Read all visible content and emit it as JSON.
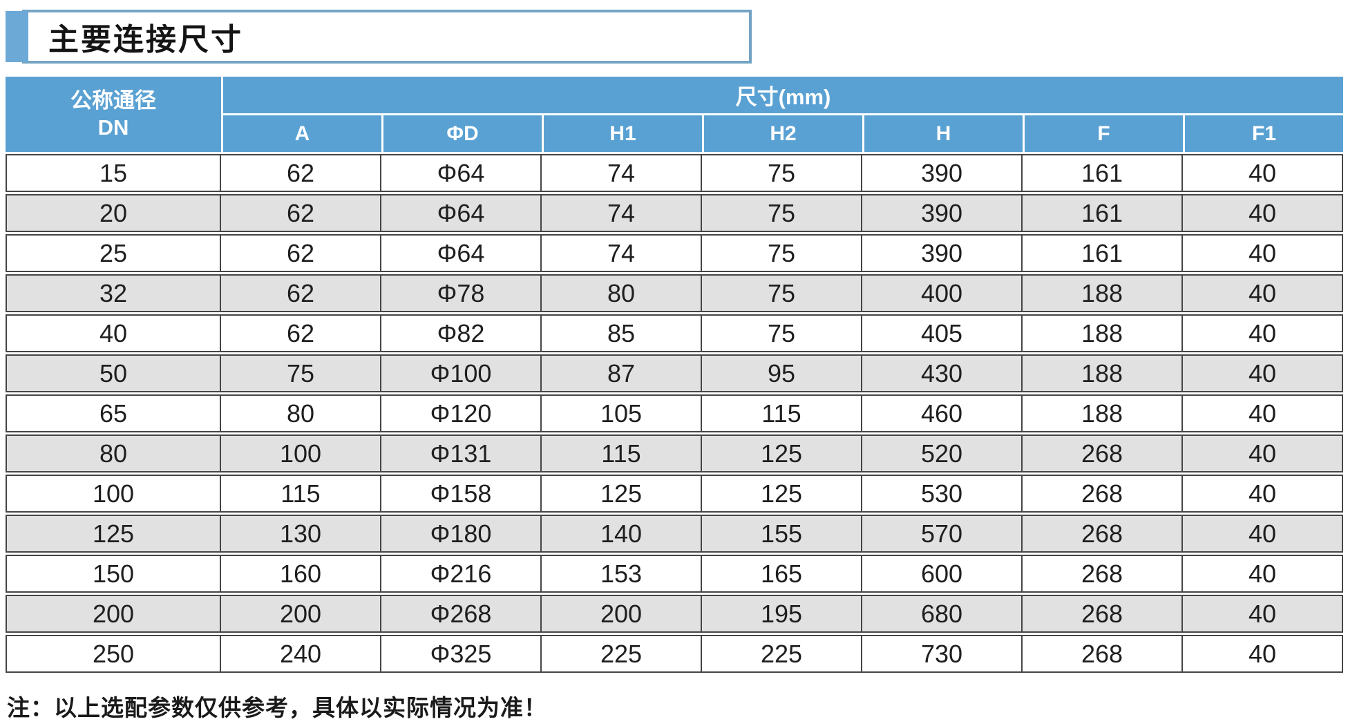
{
  "title": "主要连接尺寸",
  "note": "注：以上选配参数仅供参考，具体以实际情况为准！",
  "colors": {
    "header_blue": "#5AA1D3",
    "accent_blue": "#6CA9D6",
    "title_border_blue": "#74A3C4",
    "alt_row_gray": "#E1E1E1",
    "grid_dark": "#454545"
  },
  "table": {
    "col1_header_line1": "公称通径",
    "col1_header_line2": "DN",
    "group_header": "尺寸(mm)",
    "columns": [
      "A",
      "ΦD",
      "H1",
      "H2",
      "H",
      "F",
      "F1"
    ],
    "rows": [
      [
        "15",
        "62",
        "Φ64",
        "74",
        "75",
        "390",
        "161",
        "40"
      ],
      [
        "20",
        "62",
        "Φ64",
        "74",
        "75",
        "390",
        "161",
        "40"
      ],
      [
        "25",
        "62",
        "Φ64",
        "74",
        "75",
        "390",
        "161",
        "40"
      ],
      [
        "32",
        "62",
        "Φ78",
        "80",
        "75",
        "400",
        "188",
        "40"
      ],
      [
        "40",
        "62",
        "Φ82",
        "85",
        "75",
        "405",
        "188",
        "40"
      ],
      [
        "50",
        "75",
        "Φ100",
        "87",
        "95",
        "430",
        "188",
        "40"
      ],
      [
        "65",
        "80",
        "Φ120",
        "105",
        "115",
        "460",
        "188",
        "40"
      ],
      [
        "80",
        "100",
        "Φ131",
        "115",
        "125",
        "520",
        "268",
        "40"
      ],
      [
        "100",
        "115",
        "Φ158",
        "125",
        "125",
        "530",
        "268",
        "40"
      ],
      [
        "125",
        "130",
        "Φ180",
        "140",
        "155",
        "570",
        "268",
        "40"
      ],
      [
        "150",
        "160",
        "Φ216",
        "153",
        "165",
        "600",
        "268",
        "40"
      ],
      [
        "200",
        "200",
        "Φ268",
        "200",
        "195",
        "680",
        "268",
        "40"
      ],
      [
        "250",
        "240",
        "Φ325",
        "225",
        "225",
        "730",
        "268",
        "40"
      ]
    ]
  }
}
